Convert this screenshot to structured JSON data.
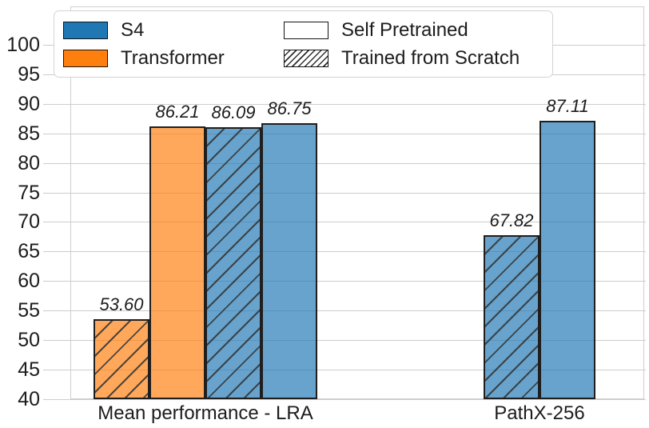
{
  "chart_data": {
    "type": "bar",
    "title": "",
    "xlabel": "",
    "ylabel": "",
    "ylim": [
      40,
      106.5
    ],
    "yticks": [
      40,
      45,
      50,
      55,
      60,
      65,
      70,
      75,
      80,
      85,
      90,
      95,
      100
    ],
    "grid": true,
    "legend_position": "upper left",
    "groups": [
      {
        "label": "Mean performance - LRA",
        "bars": [
          {
            "series": "Transformer",
            "variant": "Trained from Scratch",
            "value": 53.6,
            "value_label": "53.60",
            "color": "orange",
            "hatched": true
          },
          {
            "series": "Transformer",
            "variant": "Self Pretrained",
            "value": 86.21,
            "value_label": "86.21",
            "color": "orange",
            "hatched": false
          },
          {
            "series": "S4",
            "variant": "Trained from Scratch",
            "value": 86.09,
            "value_label": "86.09",
            "color": "blue",
            "hatched": true
          },
          {
            "series": "S4",
            "variant": "Self Pretrained",
            "value": 86.75,
            "value_label": "86.75",
            "color": "blue",
            "hatched": false
          }
        ]
      },
      {
        "label": "PathX-256",
        "bars": [
          {
            "series": "S4",
            "variant": "Trained from Scratch",
            "value": 67.82,
            "value_label": "67.82",
            "color": "blue",
            "hatched": true
          },
          {
            "series": "S4",
            "variant": "Self Pretrained",
            "value": 87.11,
            "value_label": "87.11",
            "color": "blue",
            "hatched": false
          }
        ]
      }
    ],
    "legend": {
      "entries": [
        {
          "label": "S4",
          "swatch": "blue"
        },
        {
          "label": "Transformer",
          "swatch": "orange"
        },
        {
          "label": "Self Pretrained",
          "swatch": "white"
        },
        {
          "label": "Trained from Scratch",
          "swatch": "hatch"
        }
      ]
    },
    "colors": {
      "blue_legend": "#1f77b4",
      "orange_legend": "#ff7f0e",
      "bar_blue": "rgba(31,119,180,0.68)",
      "bar_orange": "rgba(255,127,14,0.68)",
      "grid": "#cccccc",
      "text": "#1c1c1c"
    }
  }
}
